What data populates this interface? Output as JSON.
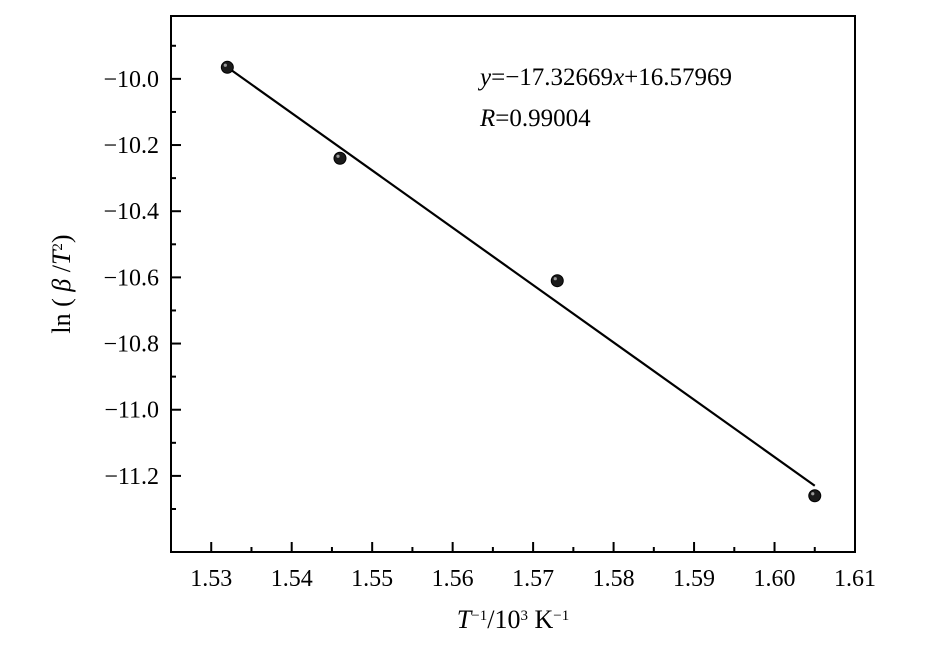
{
  "chart_data": {
    "type": "scatter",
    "x": [
      1.532,
      1.546,
      1.573,
      1.605
    ],
    "y": [
      -9.965,
      -10.24,
      -10.61,
      -11.26
    ],
    "fit_line": {
      "slope": -17.32669,
      "intercept": 16.57969,
      "x_range": [
        1.532,
        1.605
      ]
    },
    "xlim": [
      1.525,
      1.61
    ],
    "ylim": [
      -11.43,
      -9.81
    ],
    "xticks": [
      1.53,
      1.54,
      1.55,
      1.56,
      1.57,
      1.58,
      1.59,
      1.6,
      1.61
    ],
    "yticks": [
      -10.0,
      -10.2,
      -10.4,
      -10.6,
      -10.8,
      -11.0,
      -11.2
    ],
    "xtick_labels": [
      "1.53",
      "1.54",
      "1.55",
      "1.56",
      "1.57",
      "1.58",
      "1.59",
      "1.60",
      "1.61"
    ],
    "ytick_labels": [
      "−10.0",
      "−10.2",
      "−10.4",
      "−10.6",
      "−10.8",
      "−11.0",
      "−11.2"
    ],
    "xlabel": {
      "base": "T",
      "sup1": "−1",
      "mid": "/10",
      "sup2": "3",
      "unit": " K",
      "sup3": "−1"
    },
    "ylabel": {
      "pre": "ln ( ",
      "beta": "β",
      "slash": " /",
      "T": "T",
      "sup": "2",
      "post": ")"
    },
    "annotation": {
      "eq_y": "y",
      "eq_eq": "=−17.32669",
      "eq_x": "x",
      "eq_rest": "+16.57969",
      "r_R": "R",
      "r_val": "=0.99004"
    },
    "grid": false,
    "legend": "none"
  }
}
